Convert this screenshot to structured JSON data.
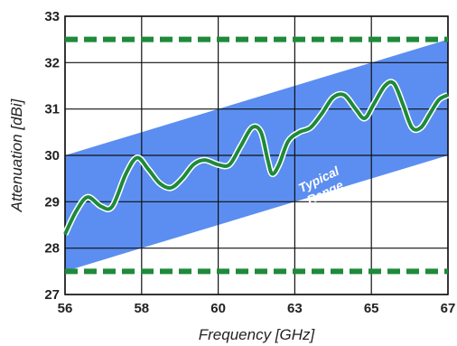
{
  "chart_data": {
    "type": "line",
    "title": "",
    "xlabel": "Frequency [GHz]",
    "ylabel": "Attenuation [dBi]",
    "x_ticks": [
      "56",
      "58",
      "60",
      "63",
      "65",
      "67"
    ],
    "y_ticks": [
      "27",
      "28",
      "29",
      "30",
      "31",
      "32",
      "33"
    ],
    "ylim": [
      27,
      33
    ],
    "grid": true,
    "band": {
      "label": [
        "Typical",
        "Range"
      ],
      "color": "#5b8ef0",
      "lower": [
        [
          "56",
          27.5
        ],
        [
          "67",
          30.0
        ]
      ],
      "upper": [
        [
          "56",
          30.0
        ],
        [
          "67",
          32.5
        ]
      ]
    },
    "limit_lines": {
      "color": "#1e8a3a",
      "style": "dashed",
      "values": [
        27.5,
        32.5
      ]
    },
    "series": [
      {
        "color": "#1e8a3a",
        "points": [
          [
            "56",
            28.3
          ],
          [
            0.25,
            28.8
          ],
          [
            0.5,
            29.1
          ],
          [
            0.8,
            28.9
          ],
          [
            1.05,
            28.9
          ],
          [
            1.35,
            29.6
          ],
          [
            1.6,
            29.95
          ],
          [
            1.85,
            29.7
          ],
          [
            2.1,
            29.4
          ],
          [
            2.35,
            29.3
          ],
          [
            2.6,
            29.5
          ],
          [
            2.85,
            29.8
          ],
          [
            3.1,
            29.9
          ],
          [
            3.4,
            29.8
          ],
          [
            3.65,
            29.8
          ],
          [
            3.9,
            30.2
          ],
          [
            4.15,
            30.6
          ],
          [
            4.35,
            30.5
          ],
          [
            4.5,
            29.9
          ],
          [
            4.6,
            29.6
          ],
          [
            4.75,
            29.8
          ],
          [
            4.95,
            30.3
          ],
          [
            5.2,
            30.5
          ],
          [
            5.45,
            30.6
          ],
          [
            5.7,
            30.9
          ],
          [
            5.95,
            31.25
          ],
          [
            6.2,
            31.3
          ],
          [
            6.45,
            31.0
          ],
          [
            6.65,
            30.8
          ],
          [
            6.85,
            31.1
          ],
          [
            7.1,
            31.5
          ],
          [
            7.3,
            31.55
          ],
          [
            7.5,
            31.1
          ],
          [
            7.7,
            30.6
          ],
          [
            7.9,
            30.6
          ],
          [
            8.1,
            30.9
          ],
          [
            8.3,
            31.2
          ],
          [
            "67",
            31.3
          ]
        ]
      }
    ]
  }
}
